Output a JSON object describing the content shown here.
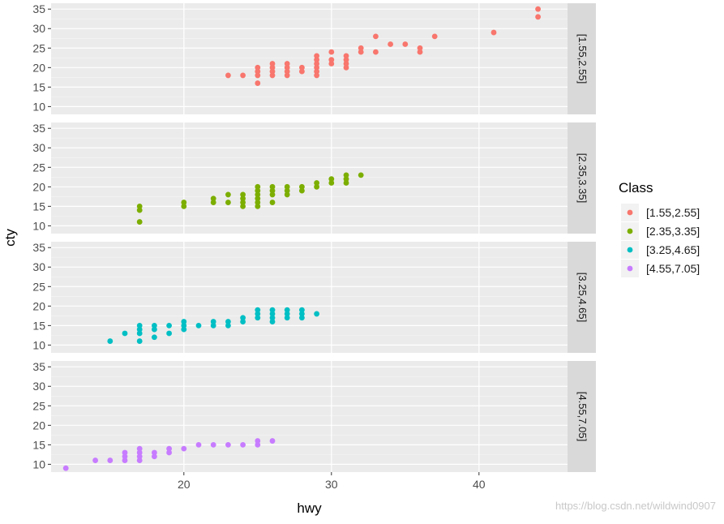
{
  "chart_data": {
    "type": "scatter",
    "layout": "faceted rows",
    "xlabel": "hwy",
    "ylabel": "cty",
    "xlim": [
      11,
      46
    ],
    "ylim": [
      8,
      36.5
    ],
    "x_ticks": [
      20,
      30,
      40
    ],
    "y_ticks": [
      10,
      15,
      20,
      25,
      30,
      35
    ],
    "grid": true,
    "legend": {
      "title": "Class",
      "placement": "right"
    },
    "series": [
      {
        "name": "[1.55,2.55]",
        "color": "#F8766D",
        "points": [
          [
            23,
            18
          ],
          [
            24,
            18
          ],
          [
            25,
            16
          ],
          [
            25,
            18
          ],
          [
            25,
            19
          ],
          [
            25,
            20
          ],
          [
            26,
            18
          ],
          [
            26,
            19
          ],
          [
            26,
            20
          ],
          [
            26,
            21
          ],
          [
            27,
            18
          ],
          [
            27,
            19
          ],
          [
            27,
            20
          ],
          [
            27,
            21
          ],
          [
            28,
            19
          ],
          [
            28,
            20
          ],
          [
            29,
            18
          ],
          [
            29,
            19
          ],
          [
            29,
            20
          ],
          [
            29,
            21
          ],
          [
            29,
            22
          ],
          [
            29,
            23
          ],
          [
            30,
            21
          ],
          [
            30,
            22
          ],
          [
            30,
            24
          ],
          [
            31,
            20
          ],
          [
            31,
            21
          ],
          [
            31,
            22
          ],
          [
            31,
            23
          ],
          [
            32,
            24
          ],
          [
            32,
            25
          ],
          [
            33,
            24
          ],
          [
            33,
            28
          ],
          [
            34,
            26
          ],
          [
            35,
            26
          ],
          [
            36,
            24
          ],
          [
            36,
            25
          ],
          [
            37,
            28
          ],
          [
            41,
            29
          ],
          [
            44,
            33
          ],
          [
            44,
            35
          ]
        ]
      },
      {
        "name": "[2.35,3.35]",
        "color": "#7CAE00",
        "points": [
          [
            17,
            11
          ],
          [
            17,
            14
          ],
          [
            17,
            15
          ],
          [
            20,
            15
          ],
          [
            20,
            16
          ],
          [
            22,
            16
          ],
          [
            22,
            17
          ],
          [
            23,
            16
          ],
          [
            23,
            18
          ],
          [
            24,
            15
          ],
          [
            24,
            16
          ],
          [
            24,
            17
          ],
          [
            24,
            18
          ],
          [
            25,
            15
          ],
          [
            25,
            16
          ],
          [
            25,
            17
          ],
          [
            25,
            18
          ],
          [
            25,
            19
          ],
          [
            25,
            20
          ],
          [
            26,
            16
          ],
          [
            26,
            18
          ],
          [
            26,
            19
          ],
          [
            26,
            20
          ],
          [
            27,
            18
          ],
          [
            27,
            19
          ],
          [
            27,
            20
          ],
          [
            28,
            19
          ],
          [
            28,
            20
          ],
          [
            29,
            20
          ],
          [
            29,
            21
          ],
          [
            30,
            21
          ],
          [
            30,
            22
          ],
          [
            31,
            21
          ],
          [
            31,
            22
          ],
          [
            31,
            23
          ],
          [
            32,
            23
          ]
        ]
      },
      {
        "name": "[3.25,4.65]",
        "color": "#00BFC4",
        "points": [
          [
            15,
            11
          ],
          [
            16,
            13
          ],
          [
            17,
            11
          ],
          [
            17,
            13
          ],
          [
            17,
            14
          ],
          [
            17,
            15
          ],
          [
            18,
            12
          ],
          [
            18,
            14
          ],
          [
            18,
            15
          ],
          [
            19,
            13
          ],
          [
            19,
            15
          ],
          [
            20,
            14
          ],
          [
            20,
            15
          ],
          [
            20,
            16
          ],
          [
            21,
            15
          ],
          [
            22,
            15
          ],
          [
            22,
            16
          ],
          [
            23,
            15
          ],
          [
            23,
            16
          ],
          [
            24,
            16
          ],
          [
            24,
            17
          ],
          [
            25,
            17
          ],
          [
            25,
            18
          ],
          [
            25,
            19
          ],
          [
            26,
            16
          ],
          [
            26,
            17
          ],
          [
            26,
            18
          ],
          [
            26,
            19
          ],
          [
            27,
            17
          ],
          [
            27,
            18
          ],
          [
            27,
            19
          ],
          [
            28,
            17
          ],
          [
            28,
            18
          ],
          [
            28,
            19
          ],
          [
            29,
            18
          ]
        ]
      },
      {
        "name": "[4.55,7.05]",
        "color": "#C77CFF",
        "points": [
          [
            12,
            9
          ],
          [
            14,
            11
          ],
          [
            15,
            11
          ],
          [
            16,
            11
          ],
          [
            16,
            12
          ],
          [
            16,
            13
          ],
          [
            17,
            11
          ],
          [
            17,
            12
          ],
          [
            17,
            13
          ],
          [
            17,
            14
          ],
          [
            18,
            12
          ],
          [
            18,
            13
          ],
          [
            19,
            13
          ],
          [
            19,
            14
          ],
          [
            20,
            14
          ],
          [
            21,
            15
          ],
          [
            22,
            15
          ],
          [
            23,
            15
          ],
          [
            24,
            15
          ],
          [
            25,
            15
          ],
          [
            25,
            16
          ],
          [
            26,
            16
          ]
        ]
      }
    ]
  },
  "watermark": "https://blog.csdn.net/wildwind0907"
}
